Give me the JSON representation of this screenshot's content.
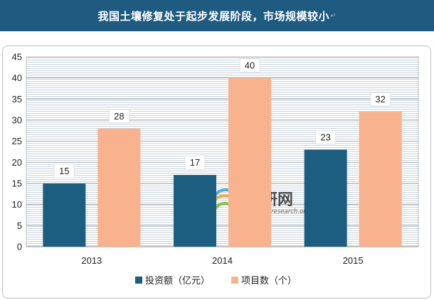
{
  "title": {
    "text": "我国土壤修复处于起步发展阶段，市场规模较小",
    "mark": "↵"
  },
  "colors": {
    "title_bg": "#1f5b80",
    "series_investment": "#1c5e80",
    "series_projects": "#f8b28e",
    "grid": "#b0b0b0",
    "plot_bg": "#e4ebf2"
  },
  "watermark": {
    "logo_icon": "prosearch-logo-icon",
    "cn_text": "观研网",
    "url_text": "www.proresearch.org"
  },
  "chart_data": {
    "type": "bar",
    "title": "",
    "xlabel": "",
    "ylabel": "",
    "categories": [
      "2013",
      "2014",
      "2015"
    ],
    "series": [
      {
        "name": "投资额（亿元）",
        "values": [
          15,
          17,
          23
        ],
        "color": "#1c5e80"
      },
      {
        "name": "项目数（个）",
        "values": [
          28,
          40,
          32
        ],
        "color": "#f8b28e"
      }
    ],
    "ylim": [
      0,
      45
    ],
    "yticks": [
      "0",
      "5",
      "10",
      "15",
      "20",
      "25",
      "30",
      "35",
      "40",
      "45"
    ],
    "grid": true,
    "data_labels": true,
    "legend": {
      "position": "bottom"
    }
  }
}
